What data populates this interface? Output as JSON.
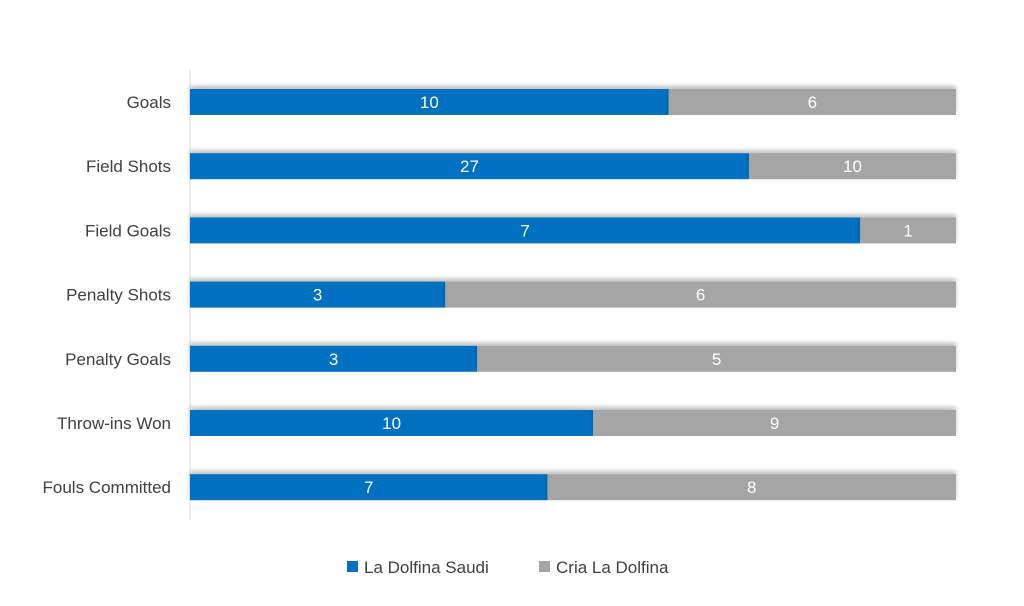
{
  "chart_data": {
    "type": "bar",
    "orientation": "horizontal",
    "stacking": "percent",
    "title": "",
    "xlabel": "",
    "ylabel": "",
    "categories": [
      "Goals",
      "Field Shots",
      "Field Goals",
      "Penalty Shots",
      "Penalty Goals",
      "Throw-ins Won",
      "Fouls Committed"
    ],
    "series": [
      {
        "name": "La Dolfina Saudi",
        "color": "#0070C0",
        "values": [
          10,
          27,
          7,
          3,
          3,
          10,
          7
        ]
      },
      {
        "name": "Cria La Dolfina",
        "color": "#A5A5A5",
        "values": [
          6,
          10,
          1,
          6,
          5,
          9,
          8
        ]
      }
    ],
    "data_labels": true,
    "grid": false,
    "legend": "bottom"
  }
}
